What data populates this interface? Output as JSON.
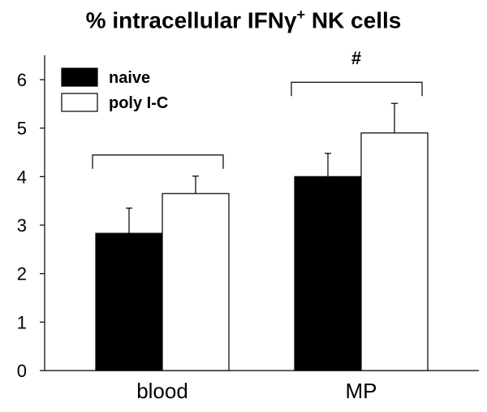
{
  "chart_data": {
    "type": "bar",
    "title_main": "% intracellular IFNγ",
    "title_sup": "+",
    "title_end": " NK cells",
    "categories": [
      "blood",
      "MP"
    ],
    "series": [
      {
        "name": "naive",
        "color": "#000000",
        "values": [
          2.83,
          4.0
        ],
        "errors": [
          0.52,
          0.48
        ]
      },
      {
        "name": "poly I-C",
        "color": "#ffffff",
        "values": [
          3.65,
          4.9
        ],
        "errors": [
          0.36,
          0.61
        ]
      }
    ],
    "ylim": [
      0,
      6
    ],
    "yticks": [
      0,
      1,
      2,
      3,
      4,
      5,
      6
    ],
    "annotations": [
      {
        "category": "MP",
        "text": "#"
      }
    ],
    "legend_position": "top-left"
  }
}
